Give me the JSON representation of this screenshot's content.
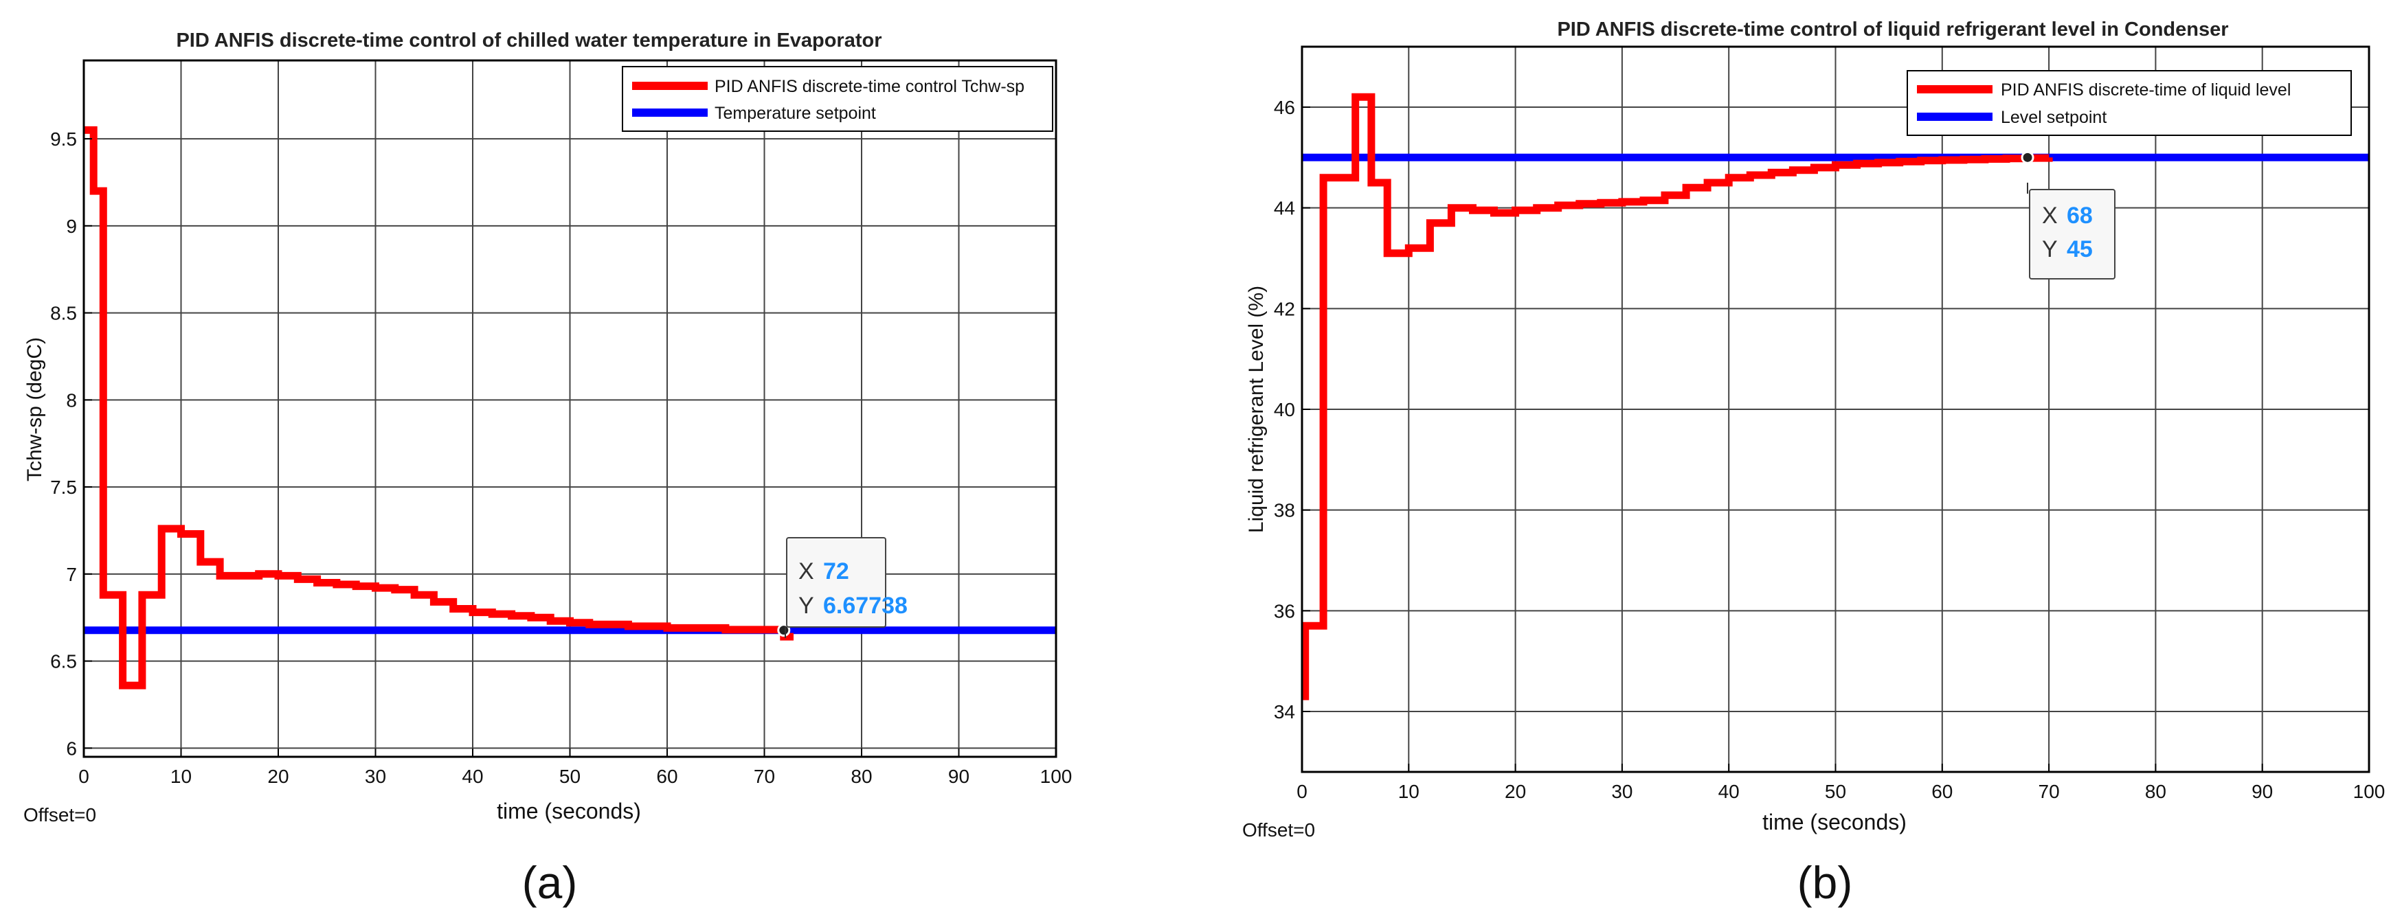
{
  "chart_data": [
    {
      "type": "line",
      "title": "PID ANFIS discrete-time control of chilled water temperature in Evaporator",
      "xlabel": "time (seconds)",
      "ylabel": "Tchw-sp (degC)",
      "xlim": [
        0,
        100
      ],
      "ylim": [
        5.95,
        9.95
      ],
      "xticks": [
        0,
        10,
        20,
        30,
        40,
        50,
        60,
        70,
        80,
        90,
        100
      ],
      "yticks": [
        6,
        6.5,
        7,
        7.5,
        8,
        8.5,
        9,
        9.5
      ],
      "grid": true,
      "legend_position": "top-right",
      "offset_label": "Offset=0",
      "panel_label": "(a)",
      "series": [
        {
          "name": "PID ANFIS discrete-time control Tchw-sp",
          "color": "#ff0000",
          "step": true,
          "x": [
            0,
            1,
            2,
            4,
            6,
            8,
            10,
            12,
            14,
            16,
            18,
            20,
            22,
            24,
            26,
            28,
            30,
            32,
            34,
            36,
            38,
            40,
            42,
            44,
            46,
            48,
            50,
            52,
            54,
            56,
            58,
            60,
            62,
            64,
            66,
            68,
            70,
            72,
            73
          ],
          "y": [
            9.55,
            9.2,
            6.88,
            6.36,
            6.88,
            7.26,
            7.23,
            7.07,
            6.99,
            6.99,
            7.0,
            6.99,
            6.97,
            6.95,
            6.94,
            6.93,
            6.92,
            6.91,
            6.88,
            6.84,
            6.8,
            6.78,
            6.77,
            6.76,
            6.75,
            6.73,
            6.72,
            6.71,
            6.71,
            6.7,
            6.7,
            6.69,
            6.69,
            6.69,
            6.68,
            6.68,
            6.68,
            6.64,
            6.64
          ]
        },
        {
          "name": "Temperature setpoint",
          "color": "#0000ff",
          "x": [
            0,
            100
          ],
          "y": [
            6.677,
            6.677
          ]
        }
      ],
      "datatip": {
        "x_label": "X",
        "x_value": "72",
        "y_label": "Y",
        "y_value": "6.67738",
        "x": 72,
        "y": 6.67738
      }
    },
    {
      "type": "line",
      "title": "PID ANFIS discrete-time control of liquid refrigerant level in Condenser",
      "xlabel": "time (seconds)",
      "ylabel": "Liquid refrigerant Level (%)",
      "xlim": [
        0,
        100
      ],
      "ylim": [
        32.8,
        47.2
      ],
      "xticks": [
        0,
        10,
        20,
        30,
        40,
        50,
        60,
        70,
        80,
        90,
        100
      ],
      "yticks": [
        34,
        36,
        38,
        40,
        42,
        44,
        46
      ],
      "grid": true,
      "legend_position": "top-right",
      "offset_label": "Offset=0",
      "panel_label": "(b)",
      "series": [
        {
          "name": "PID ANFIS discrete-time of liquid level",
          "color": "#ff0000",
          "step": true,
          "x": [
            0,
            0.3,
            2,
            4,
            5,
            6.5,
            8,
            10,
            12,
            14,
            16,
            18,
            20,
            22,
            24,
            26,
            28,
            30,
            32,
            34,
            36,
            38,
            40,
            42,
            44,
            46,
            48,
            50,
            52,
            54,
            56,
            58,
            60,
            62,
            64,
            66,
            68,
            70
          ],
          "y": [
            34.3,
            35.7,
            44.6,
            44.6,
            46.2,
            44.5,
            43.1,
            43.2,
            43.7,
            44.0,
            43.95,
            43.9,
            43.95,
            44.0,
            44.05,
            44.08,
            44.1,
            44.12,
            44.15,
            44.25,
            44.4,
            44.5,
            44.6,
            44.65,
            44.7,
            44.75,
            44.8,
            44.85,
            44.88,
            44.9,
            44.92,
            44.94,
            44.95,
            44.96,
            44.97,
            44.98,
            44.99,
            45.0
          ]
        },
        {
          "name": "Level setpoint",
          "color": "#0000ff",
          "x": [
            0,
            100
          ],
          "y": [
            45,
            45
          ]
        }
      ],
      "datatip": {
        "x_label": "X",
        "x_value": "68",
        "y_label": "Y",
        "y_value": "45",
        "x": 68,
        "y": 45
      }
    }
  ]
}
